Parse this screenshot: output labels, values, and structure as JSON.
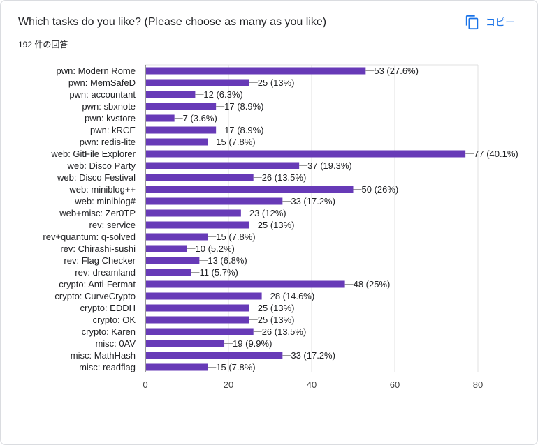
{
  "header": {
    "title": "Which tasks do you like? (Please choose as many as you like)",
    "response_count": "192 件の回答",
    "copy_label": "コピー"
  },
  "colors": {
    "bar": "#673ab7",
    "accent": "#1a73e8",
    "grid": "#e0e0e0",
    "text": "#202124"
  },
  "chart_data": {
    "type": "bar",
    "orientation": "horizontal",
    "title": "Which tasks do you like? (Please choose as many as you like)",
    "xlabel": "",
    "ylabel": "",
    "xlim": [
      0,
      80
    ],
    "xticks": [
      0,
      20,
      40,
      60,
      80
    ],
    "grid": true,
    "categories": [
      "pwn: Modern Rome",
      "pwn: MemSafeD",
      "pwn: accountant",
      "pwn: sbxnote",
      "pwn: kvstore",
      "pwn: kRCE",
      "pwn: redis-lite",
      "web: GitFile Explorer",
      "web: Disco Party",
      "web: Disco Festival",
      "web: miniblog++",
      "web: miniblog#",
      "web+misc: Zer0TP",
      "rev: service",
      "rev+quantum: q-solved",
      "rev: Chirashi-sushi",
      "rev: Flag Checker",
      "rev: dreamland",
      "crypto: Anti-Fermat",
      "crypto: CurveCrypto",
      "crypto: EDDH",
      "crypto: OK",
      "crypto: Karen",
      "misc: 0AV",
      "misc: MathHash",
      "misc: readflag"
    ],
    "values": [
      53,
      25,
      12,
      17,
      7,
      17,
      15,
      77,
      37,
      26,
      50,
      33,
      23,
      25,
      15,
      10,
      13,
      11,
      48,
      28,
      25,
      25,
      26,
      19,
      33,
      15
    ],
    "labels": [
      "53 (27.6%)",
      "25 (13%)",
      "12 (6.3%)",
      "17 (8.9%)",
      "7 (3.6%)",
      "17 (8.9%)",
      "15 (7.8%)",
      "77 (40.1%)",
      "37 (19.3%)",
      "26 (13.5%)",
      "50 (26%)",
      "33 (17.2%)",
      "23 (12%)",
      "25 (13%)",
      "15 (7.8%)",
      "10 (5.2%)",
      "13 (6.8%)",
      "11 (5.7%)",
      "48 (25%)",
      "28 (14.6%)",
      "25 (13%)",
      "25 (13%)",
      "26 (13.5%)",
      "19 (9.9%)",
      "33 (17.2%)",
      "15 (7.8%)"
    ]
  }
}
